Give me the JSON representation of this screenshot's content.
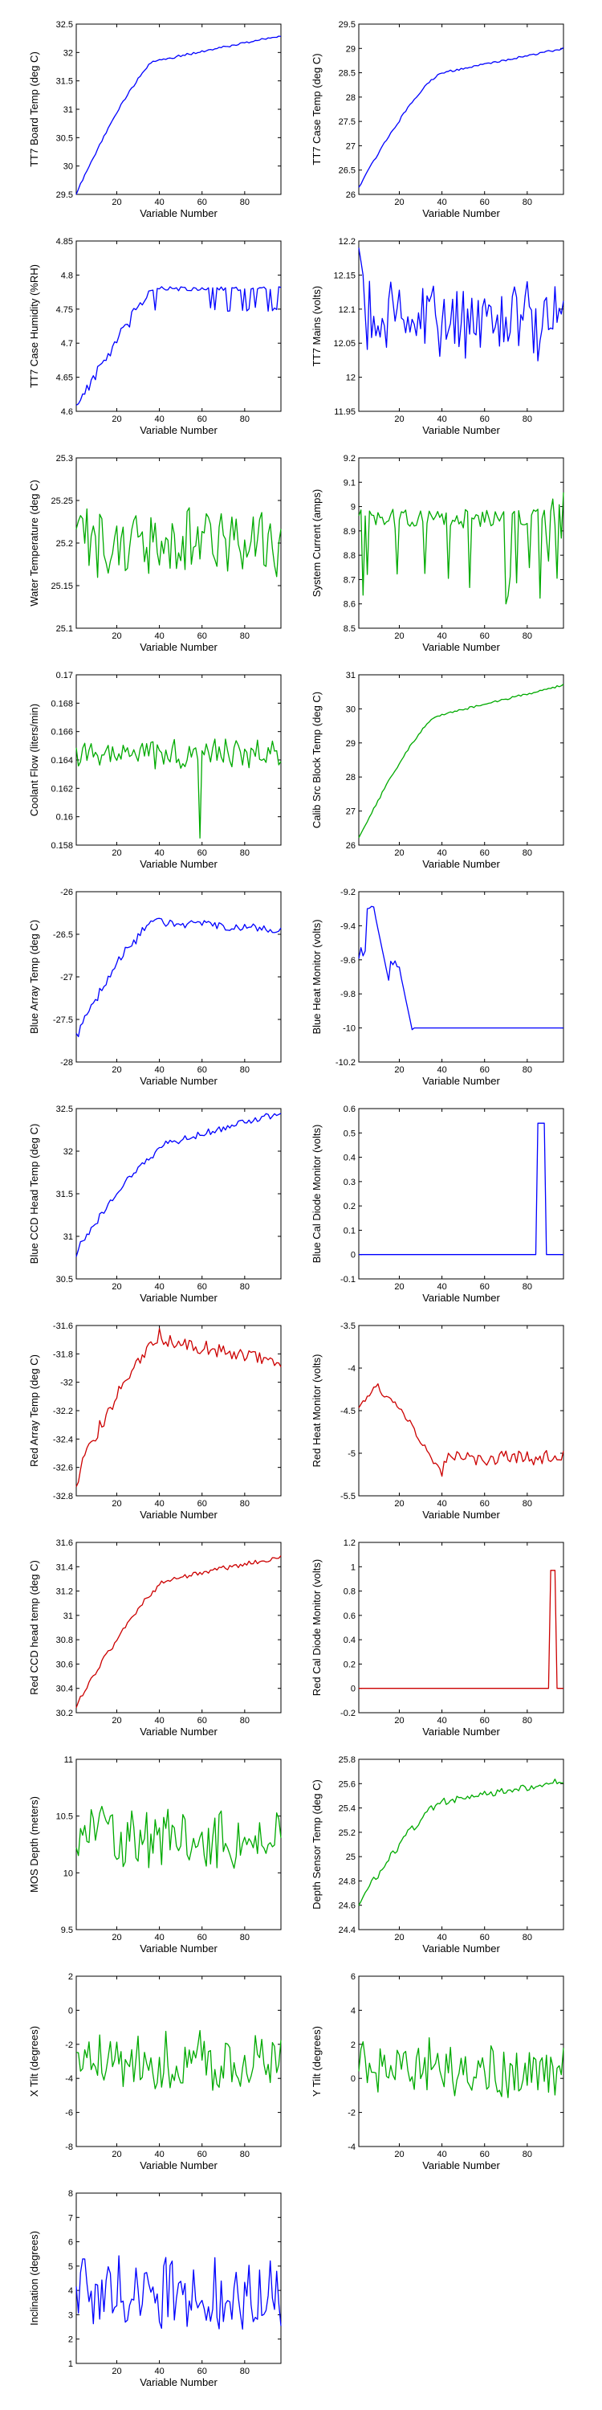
{
  "chart_data": [
    {
      "type": "line",
      "color": "#0000ff",
      "ylabel": "TT7 Board Temp (deg C)",
      "xlabel": "Variable Number",
      "xlim": [
        1,
        97
      ],
      "ylim": [
        29.5,
        32.5
      ],
      "xticks": [
        20,
        40,
        60,
        80
      ],
      "yticks": [
        29.5,
        30,
        30.5,
        31,
        31.5,
        32,
        32.5
      ],
      "ytick_labels": [
        "29.5",
        "30",
        "30.5",
        "31",
        "31.5",
        "32",
        "32.5"
      ],
      "shape": {
        "kind": "warmup",
        "start": 29.5,
        "knee": 31.85,
        "end": 32.3,
        "knee_x": 38,
        "noise": 0.02
      }
    },
    {
      "type": "line",
      "color": "#0000ff",
      "ylabel": "TT7 Case Temp (deg C)",
      "xlabel": "Variable Number",
      "xlim": [
        1,
        97
      ],
      "ylim": [
        26,
        29.5
      ],
      "xticks": [
        20,
        40,
        60,
        80
      ],
      "yticks": [
        26,
        26.5,
        27,
        27.5,
        28,
        28.5,
        29,
        29.5
      ],
      "ytick_labels": [
        "26",
        "26.5",
        "27",
        "27.5",
        "28",
        "28.5",
        "29",
        "29.5"
      ],
      "shape": {
        "kind": "warmup",
        "start": 26.15,
        "knee": 28.5,
        "end": 29.0,
        "knee_x": 40,
        "noise": 0.02
      }
    },
    {
      "type": "line",
      "color": "#0000ff",
      "ylabel": "TT7 Case Humidity (%RH)",
      "xlabel": "Variable Number",
      "xlim": [
        1,
        97
      ],
      "ylim": [
        4.6,
        4.85
      ],
      "xticks": [
        20,
        40,
        60,
        80
      ],
      "yticks": [
        4.6,
        4.65,
        4.7,
        4.75,
        4.8,
        4.85
      ],
      "ytick_labels": [
        "4.6",
        "4.65",
        "4.7",
        "4.75",
        "4.8",
        "4.85"
      ],
      "shape": {
        "kind": "humidity",
        "start": 4.61,
        "level": 4.78,
        "knee_x": 36,
        "noise": 0.01
      }
    },
    {
      "type": "line",
      "color": "#0000ff",
      "ylabel": "TT7 Mains (volts)",
      "xlabel": "Variable Number",
      "xlim": [
        1,
        97
      ],
      "ylim": [
        11.95,
        12.2
      ],
      "xticks": [
        20,
        40,
        60,
        80
      ],
      "yticks": [
        11.95,
        12,
        12.05,
        12.1,
        12.15,
        12.2
      ],
      "ytick_labels": [
        "11.95",
        "12",
        "12.05",
        "12.1",
        "12.15",
        "12.2"
      ],
      "shape": {
        "kind": "noise",
        "mean": 12.09,
        "amp": 0.05,
        "start_high": 12.19
      }
    },
    {
      "type": "line",
      "color": "#00aa00",
      "ylabel": "Water Temperature (deg C)",
      "xlabel": "Variable Number",
      "xlim": [
        1,
        97
      ],
      "ylim": [
        25.1,
        25.3
      ],
      "xticks": [
        20,
        40,
        60,
        80
      ],
      "yticks": [
        25.1,
        25.15,
        25.2,
        25.25,
        25.3
      ],
      "ytick_labels": [
        "25.1",
        "25.15",
        "25.2",
        "25.25",
        "25.3"
      ],
      "shape": {
        "kind": "noise",
        "mean": 25.2,
        "amp": 0.035
      }
    },
    {
      "type": "line",
      "color": "#00aa00",
      "ylabel": "System Current (amps)",
      "xlabel": "Variable Number",
      "xlim": [
        1,
        97
      ],
      "ylim": [
        8.5,
        9.2
      ],
      "xticks": [
        20,
        40,
        60,
        80
      ],
      "yticks": [
        8.5,
        8.6,
        8.7,
        8.8,
        8.9,
        9,
        9.1,
        9.2
      ],
      "ytick_labels": [
        "8.5",
        "8.6",
        "8.7",
        "8.8",
        "8.9",
        "9",
        "9.1",
        "9.2"
      ],
      "shape": {
        "kind": "dips",
        "mean": 8.95,
        "amp": 0.04,
        "dip": 8.6
      }
    },
    {
      "type": "line",
      "color": "#00aa00",
      "ylabel": "Coolant Flow (liters/min)",
      "xlabel": "Variable Number",
      "xlim": [
        1,
        97
      ],
      "ylim": [
        0.158,
        0.17
      ],
      "xticks": [
        20,
        40,
        60,
        80
      ],
      "yticks": [
        0.158,
        0.16,
        0.162,
        0.164,
        0.166,
        0.168,
        0.17
      ],
      "ytick_labels": [
        "0.158",
        "0.16",
        "0.162",
        "0.164",
        "0.166",
        "0.168",
        "0.17"
      ],
      "shape": {
        "kind": "noise",
        "mean": 0.1645,
        "amp": 0.0009,
        "spike_x": 59,
        "spike_v": 0.1585
      }
    },
    {
      "type": "line",
      "color": "#00aa00",
      "ylabel": "Calib Src Block Temp (deg C)",
      "xlabel": "Variable Number",
      "xlim": [
        1,
        97
      ],
      "ylim": [
        26,
        31
      ],
      "xticks": [
        20,
        40,
        60,
        80
      ],
      "yticks": [
        26,
        27,
        28,
        29,
        30,
        31
      ],
      "ytick_labels": [
        "26",
        "27",
        "28",
        "29",
        "30",
        "31"
      ],
      "shape": {
        "kind": "warmup",
        "start": 26.2,
        "knee": 29.8,
        "end": 30.7,
        "knee_x": 38,
        "noise": 0.03
      }
    },
    {
      "type": "line",
      "color": "#0000ff",
      "ylabel": "Blue Array Temp (deg C)",
      "xlabel": "Variable Number",
      "xlim": [
        1,
        97
      ],
      "ylim": [
        -28,
        -26
      ],
      "xticks": [
        20,
        40,
        60,
        80
      ],
      "yticks": [
        -28,
        -27.5,
        -27,
        -26.5,
        -26
      ],
      "ytick_labels": [
        "-28",
        "-27.5",
        "-27",
        "-26.5",
        "-26"
      ],
      "shape": {
        "kind": "warmup",
        "start": -27.7,
        "knee": -26.35,
        "end": -26.45,
        "knee_x": 38,
        "noise": 0.05
      }
    },
    {
      "type": "line",
      "color": "#0000ff",
      "ylabel": "Blue Heat Monitor (volts)",
      "xlabel": "Variable Number",
      "xlim": [
        1,
        97
      ],
      "ylim": [
        -10.2,
        -9.2
      ],
      "xticks": [
        20,
        40,
        60,
        80
      ],
      "yticks": [
        -10.2,
        -10,
        -9.8,
        -9.6,
        -9.4,
        -9.2
      ],
      "ytick_labels": [
        "-10.2",
        "-10",
        "-9.8",
        "-9.6",
        "-9.4",
        "-9.2"
      ],
      "shape": {
        "kind": "heatmon"
      }
    },
    {
      "type": "line",
      "color": "#0000ff",
      "ylabel": "Blue CCD Head Temp (deg C)",
      "xlabel": "Variable Number",
      "xlim": [
        1,
        97
      ],
      "ylim": [
        30.5,
        32.5
      ],
      "xticks": [
        20,
        40,
        60,
        80
      ],
      "yticks": [
        30.5,
        31,
        31.5,
        32,
        32.5
      ],
      "ytick_labels": [
        "30.5",
        "31",
        "31.5",
        "32",
        "32.5"
      ],
      "shape": {
        "kind": "warmup",
        "start": 30.8,
        "knee": 32.1,
        "end": 32.45,
        "knee_x": 45,
        "noise": 0.04
      }
    },
    {
      "type": "line",
      "color": "#0000ff",
      "ylabel": "Blue Cal Diode Monitor (volts)",
      "xlabel": "Variable Number",
      "xlim": [
        1,
        97
      ],
      "ylim": [
        -0.1,
        0.6
      ],
      "xticks": [
        20,
        40,
        60,
        80
      ],
      "yticks": [
        -0.1,
        0,
        0.1,
        0.2,
        0.3,
        0.4,
        0.5,
        0.6
      ],
      "ytick_labels": [
        "-0.1",
        "0",
        "0.1",
        "0.2",
        "0.3",
        "0.4",
        "0.5",
        "0.6"
      ],
      "shape": {
        "kind": "pulse",
        "base": 0.0,
        "peak": 0.54,
        "from": 85,
        "to": 88
      }
    },
    {
      "type": "line",
      "color": "#cc0000",
      "ylabel": "Red Array Temp (deg C)",
      "xlabel": "Variable Number",
      "xlim": [
        1,
        97
      ],
      "ylim": [
        -32.8,
        -31.6
      ],
      "xticks": [
        20,
        40,
        60,
        80
      ],
      "yticks": [
        -32.8,
        -32.6,
        -32.4,
        -32.2,
        -32,
        -31.8,
        -31.6
      ],
      "ytick_labels": [
        "-32.8",
        "-32.6",
        "-32.4",
        "-32.2",
        "-32",
        "-31.8",
        "-31.6"
      ],
      "shape": {
        "kind": "warmup",
        "start": -32.7,
        "knee": -31.7,
        "end": -31.85,
        "knee_x": 40,
        "noise": 0.05
      }
    },
    {
      "type": "line",
      "color": "#cc0000",
      "ylabel": "Red Heat Monitor (volts)",
      "xlabel": "Variable Number",
      "xlim": [
        1,
        97
      ],
      "ylim": [
        -5.5,
        -3.5
      ],
      "xticks": [
        20,
        40,
        60,
        80
      ],
      "yticks": [
        -5.5,
        -5,
        -4.5,
        -4,
        -3.5
      ],
      "ytick_labels": [
        "-5.5",
        "-5",
        "-4.5",
        "-4",
        "-3.5"
      ],
      "shape": {
        "kind": "redheat"
      }
    },
    {
      "type": "line",
      "color": "#cc0000",
      "ylabel": "Red CCD head temp (deg C)",
      "xlabel": "Variable Number",
      "xlim": [
        1,
        97
      ],
      "ylim": [
        30.2,
        31.6
      ],
      "xticks": [
        20,
        40,
        60,
        80
      ],
      "yticks": [
        30.2,
        30.4,
        30.6,
        30.8,
        31,
        31.2,
        31.4,
        31.6
      ],
      "ytick_labels": [
        "30.2",
        "30.4",
        "30.6",
        "30.8",
        "31",
        "31.2",
        "31.4",
        "31.6"
      ],
      "shape": {
        "kind": "warmup",
        "start": 30.25,
        "knee": 31.3,
        "end": 31.48,
        "knee_x": 45,
        "noise": 0.02
      }
    },
    {
      "type": "line",
      "color": "#cc0000",
      "ylabel": "Red Cal Diode Monitor (volts)",
      "xlabel": "Variable Number",
      "xlim": [
        1,
        97
      ],
      "ylim": [
        -0.2,
        1.2
      ],
      "xticks": [
        20,
        40,
        60,
        80
      ],
      "yticks": [
        -0.2,
        0,
        0.2,
        0.4,
        0.6,
        0.8,
        1,
        1.2
      ],
      "ytick_labels": [
        "-0.2",
        "0",
        "0.2",
        "0.4",
        "0.6",
        "0.8",
        "1",
        "1.2"
      ],
      "shape": {
        "kind": "pulse",
        "base": 0.0,
        "peak": 0.97,
        "from": 91,
        "to": 93
      }
    },
    {
      "type": "line",
      "color": "#00aa00",
      "ylabel": "MOS Depth  (meters)",
      "xlabel": "Variable Number",
      "xlim": [
        1,
        97
      ],
      "ylim": [
        9.5,
        11
      ],
      "xticks": [
        20,
        40,
        60,
        80
      ],
      "yticks": [
        9.5,
        10,
        10.5,
        11
      ],
      "ytick_labels": [
        "9.5",
        "10",
        "10.5",
        "11"
      ],
      "shape": {
        "kind": "noise",
        "mean": 10.3,
        "amp": 0.22
      }
    },
    {
      "type": "line",
      "color": "#00aa00",
      "ylabel": "Depth Sensor Temp (deg C)",
      "xlabel": "Variable Number",
      "xlim": [
        1,
        97
      ],
      "ylim": [
        24.4,
        25.8
      ],
      "xticks": [
        20,
        40,
        60,
        80
      ],
      "yticks": [
        24.4,
        24.6,
        24.8,
        25,
        25.2,
        25.4,
        25.6,
        25.8
      ],
      "ytick_labels": [
        "24.4",
        "24.6",
        "24.8",
        "25",
        "25.2",
        "25.4",
        "25.6",
        "25.8"
      ],
      "shape": {
        "kind": "warmup",
        "start": 24.6,
        "knee": 25.45,
        "end": 25.62,
        "knee_x": 40,
        "noise": 0.03
      }
    },
    {
      "type": "line",
      "color": "#00aa00",
      "ylabel": "X Tilt  (degrees)",
      "xlabel": "Variable Number",
      "xlim": [
        1,
        97
      ],
      "ylim": [
        -8,
        2
      ],
      "xticks": [
        20,
        40,
        60,
        80
      ],
      "yticks": [
        -8,
        -6,
        -4,
        -2,
        0,
        2
      ],
      "ytick_labels": [
        "-8",
        "-6",
        "-4",
        "-2",
        "0",
        "2"
      ],
      "shape": {
        "kind": "noise",
        "mean": -3,
        "amp": 1.4
      }
    },
    {
      "type": "line",
      "color": "#00aa00",
      "ylabel": "Y Tilt  (degrees)",
      "xlabel": "Variable Number",
      "xlim": [
        1,
        97
      ],
      "ylim": [
        -4,
        6
      ],
      "xticks": [
        20,
        40,
        60,
        80
      ],
      "yticks": [
        -4,
        -2,
        0,
        2,
        4,
        6
      ],
      "ytick_labels": [
        "-4",
        "-2",
        "0",
        "2",
        "4",
        "6"
      ],
      "shape": {
        "kind": "noise",
        "mean": 0.5,
        "amp": 1.4
      }
    },
    {
      "type": "line",
      "color": "#0000ff",
      "ylabel": "Inclination  (degrees)",
      "xlabel": "Variable Number",
      "xlim": [
        1,
        97
      ],
      "ylim": [
        1,
        8
      ],
      "xticks": [
        20,
        40,
        60,
        80
      ],
      "yticks": [
        1,
        2,
        3,
        4,
        5,
        6,
        7,
        8
      ],
      "ytick_labels": [
        "1",
        "2",
        "3",
        "4",
        "5",
        "6",
        "7",
        "8"
      ],
      "shape": {
        "kind": "noise",
        "mean": 3.8,
        "amp": 1.2
      }
    }
  ]
}
